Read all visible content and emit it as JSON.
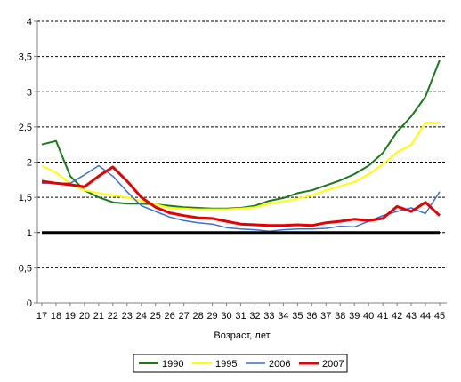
{
  "chart_data": {
    "type": "line",
    "title": "",
    "xlabel": "Возраст, лет",
    "ylabel": "",
    "ylim": [
      0,
      4
    ],
    "y_ticks": [
      "0",
      "0,5",
      "1",
      "1,5",
      "2",
      "2,5",
      "3",
      "3,5",
      "4"
    ],
    "y_tick_values": [
      0,
      0.5,
      1,
      1.5,
      2,
      2.5,
      3,
      3.5,
      4
    ],
    "categories": [
      "17",
      "18",
      "19",
      "20",
      "21",
      "22",
      "23",
      "24",
      "25",
      "26",
      "27",
      "28",
      "29",
      "30",
      "31",
      "32",
      "33",
      "34",
      "35",
      "36",
      "37",
      "38",
      "39",
      "40",
      "41",
      "42",
      "43",
      "44",
      "45"
    ],
    "grid": "horizontal dashed",
    "legend_position": "bottom",
    "reference_line": {
      "value": 1,
      "color": "#000000"
    },
    "series": [
      {
        "name": "1990",
        "color": "#1a7a1a",
        "values": [
          2.25,
          2.3,
          1.8,
          1.6,
          1.5,
          1.43,
          1.41,
          1.41,
          1.4,
          1.38,
          1.36,
          1.35,
          1.34,
          1.34,
          1.35,
          1.38,
          1.45,
          1.49,
          1.56,
          1.6,
          1.67,
          1.74,
          1.83,
          1.95,
          2.13,
          2.43,
          2.65,
          2.93,
          3.45
        ]
      },
      {
        "name": "1995",
        "color": "#ffff00",
        "values": [
          1.95,
          1.85,
          1.7,
          1.6,
          1.56,
          1.53,
          1.5,
          1.45,
          1.4,
          1.35,
          1.34,
          1.33,
          1.33,
          1.33,
          1.34,
          1.36,
          1.41,
          1.44,
          1.48,
          1.53,
          1.6,
          1.66,
          1.72,
          1.83,
          1.97,
          2.14,
          2.25,
          2.56,
          2.56
        ]
      },
      {
        "name": "2006",
        "color": "#3b6fd6",
        "values": [
          1.7,
          1.7,
          1.7,
          1.82,
          1.95,
          1.8,
          1.58,
          1.38,
          1.3,
          1.22,
          1.17,
          1.14,
          1.12,
          1.07,
          1.05,
          1.04,
          1.02,
          1.04,
          1.05,
          1.05,
          1.06,
          1.09,
          1.08,
          1.16,
          1.24,
          1.3,
          1.35,
          1.27,
          1.58
        ]
      },
      {
        "name": "2007",
        "color": "#e60000",
        "values": [
          1.73,
          1.7,
          1.68,
          1.65,
          1.8,
          1.93,
          1.73,
          1.5,
          1.36,
          1.28,
          1.24,
          1.21,
          1.2,
          1.16,
          1.12,
          1.11,
          1.1,
          1.1,
          1.11,
          1.1,
          1.14,
          1.16,
          1.19,
          1.17,
          1.2,
          1.37,
          1.3,
          1.43,
          1.24
        ]
      }
    ]
  }
}
